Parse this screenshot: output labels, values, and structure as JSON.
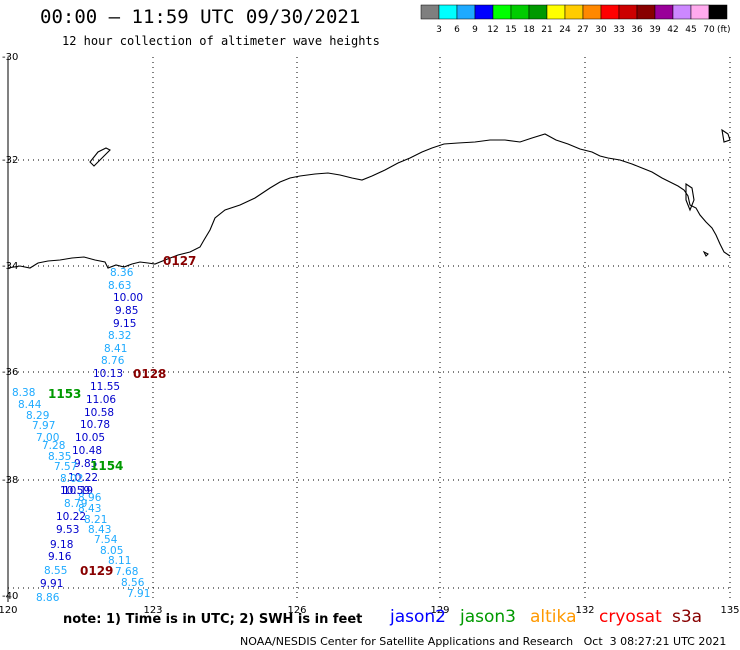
{
  "title": "00:00 – 11:59 UTC 09/30/2021",
  "subtitle": "12 hour collection of altimeter wave heights",
  "colorbar": {
    "colors": [
      "#7f7f7f",
      "#00ffff",
      "#1eaaff",
      "#0000ff",
      "#00ff00",
      "#00cc00",
      "#009900",
      "#ffff00",
      "#ffcc00",
      "#ff8800",
      "#ff0000",
      "#cc0000",
      "#880000",
      "#990099",
      "#cc88ff",
      "#ffaaee",
      "#000000"
    ],
    "labels": [
      "3",
      "6",
      "9",
      "12",
      "15",
      "18",
      "21",
      "24",
      "27",
      "30",
      "33",
      "36",
      "39",
      "42",
      "45",
      "70"
    ],
    "unit": "(ft)"
  },
  "axes": {
    "lat_labels": [
      "-30",
      "-32",
      "-34",
      "-36",
      "-38",
      "-40"
    ],
    "lon_labels": [
      "120",
      "123",
      "126",
      "129",
      "132",
      "135"
    ]
  },
  "time_labels": [
    {
      "text": "0127",
      "color": "#880000"
    },
    {
      "text": "0128",
      "color": "#880000"
    },
    {
      "text": "1153",
      "color": "#009900"
    },
    {
      "text": "1154",
      "color": "#009900"
    },
    {
      "text": "0129",
      "color": "#880000"
    }
  ],
  "wave_heights": [
    {
      "text": "8.36",
      "color": "#1eaaff"
    },
    {
      "text": "8.63",
      "color": "#1eaaff"
    },
    {
      "text": "10.00",
      "color": "#0000cc"
    },
    {
      "text": "9.85",
      "color": "#0000cc"
    },
    {
      "text": "9.15",
      "color": "#0000cc"
    },
    {
      "text": "8.32",
      "color": "#1eaaff"
    },
    {
      "text": "8.41",
      "color": "#1eaaff"
    },
    {
      "text": "8.76",
      "color": "#1eaaff"
    },
    {
      "text": "10.13",
      "color": "#0000cc"
    },
    {
      "text": "11.55",
      "color": "#0000cc"
    },
    {
      "text": "11.06",
      "color": "#0000cc"
    },
    {
      "text": "10.58",
      "color": "#0000cc"
    },
    {
      "text": "10.78",
      "color": "#0000cc"
    },
    {
      "text": "10.05",
      "color": "#0000cc"
    },
    {
      "text": "10.48",
      "color": "#0000cc"
    },
    {
      "text": "9.85",
      "color": "#0000cc"
    },
    {
      "text": "10.22",
      "color": "#0000cc"
    },
    {
      "text": "10.19",
      "color": "#0000cc"
    },
    {
      "text": "8.96",
      "color": "#1eaaff"
    },
    {
      "text": "8.43",
      "color": "#1eaaff"
    },
    {
      "text": "8.21",
      "color": "#1eaaff"
    },
    {
      "text": "8.43",
      "color": "#1eaaff"
    },
    {
      "text": "7.54",
      "color": "#1eaaff"
    },
    {
      "text": "8.05",
      "color": "#1eaaff"
    },
    {
      "text": "8.11",
      "color": "#1eaaff"
    },
    {
      "text": "7.68",
      "color": "#1eaaff"
    },
    {
      "text": "8.56",
      "color": "#1eaaff"
    },
    {
      "text": "7.91",
      "color": "#1eaaff"
    },
    {
      "text": "8.38",
      "color": "#1eaaff"
    },
    {
      "text": "8.44",
      "color": "#1eaaff"
    },
    {
      "text": "8.29",
      "color": "#1eaaff"
    },
    {
      "text": "7.97",
      "color": "#1eaaff"
    },
    {
      "text": "7.00",
      "color": "#1eaaff"
    },
    {
      "text": "7.28",
      "color": "#1eaaff"
    },
    {
      "text": "8.35",
      "color": "#1eaaff"
    },
    {
      "text": "7.57",
      "color": "#1eaaff"
    },
    {
      "text": "8.02",
      "color": "#1eaaff"
    },
    {
      "text": "10.59",
      "color": "#0000cc"
    },
    {
      "text": "8.79",
      "color": "#1eaaff"
    },
    {
      "text": "10.22",
      "color": "#0000cc"
    },
    {
      "text": "9.53",
      "color": "#0000cc"
    },
    {
      "text": "9.18",
      "color": "#0000cc"
    },
    {
      "text": "9.16",
      "color": "#0000cc"
    },
    {
      "text": "8.55",
      "color": "#1eaaff"
    },
    {
      "text": "9.91",
      "color": "#0000cc"
    },
    {
      "text": "8.86",
      "color": "#1eaaff"
    }
  ],
  "note": "note: 1) Time is in UTC; 2) SWH is in feet",
  "satellites": [
    {
      "name": "jason2",
      "color": "#0000ff"
    },
    {
      "name": "jason3",
      "color": "#009900"
    },
    {
      "name": "altika",
      "color": "#ff9900"
    },
    {
      "name": "cryosat",
      "color": "#ff0000"
    },
    {
      "name": "s3a",
      "color": "#880000"
    }
  ],
  "credit": "NOAA/NESDIS Center for Satellite Applications and Research   Oct  3 08:27:21 UTC 2021"
}
